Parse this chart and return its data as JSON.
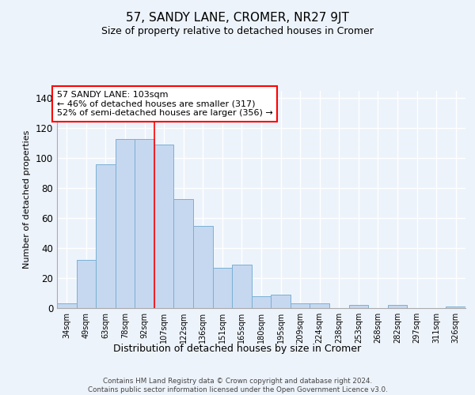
{
  "title": "57, SANDY LANE, CROMER, NR27 9JT",
  "subtitle": "Size of property relative to detached houses in Cromer",
  "xlabel": "Distribution of detached houses by size in Cromer",
  "ylabel": "Number of detached properties",
  "categories": [
    "34sqm",
    "49sqm",
    "63sqm",
    "78sqm",
    "92sqm",
    "107sqm",
    "122sqm",
    "136sqm",
    "151sqm",
    "165sqm",
    "180sqm",
    "195sqm",
    "209sqm",
    "224sqm",
    "238sqm",
    "253sqm",
    "268sqm",
    "282sqm",
    "297sqm",
    "311sqm",
    "326sqm"
  ],
  "values": [
    3,
    32,
    96,
    113,
    113,
    109,
    73,
    55,
    27,
    29,
    8,
    9,
    3,
    3,
    0,
    2,
    0,
    2,
    0,
    0,
    1
  ],
  "bar_color": "#c5d8f0",
  "bar_edge_color": "#7ab0d4",
  "red_line_index": 5,
  "annotation_title": "57 SANDY LANE: 103sqm",
  "annotation_line1": "← 46% of detached houses are smaller (317)",
  "annotation_line2": "52% of semi-detached houses are larger (356) →",
  "ylim": [
    0,
    145
  ],
  "yticks": [
    0,
    20,
    40,
    60,
    80,
    100,
    120,
    140
  ],
  "footer_line1": "Contains HM Land Registry data © Crown copyright and database right 2024.",
  "footer_line2": "Contains public sector information licensed under the Open Government Licence v3.0.",
  "bg_color": "#edf3fb",
  "plot_bg_color": "#edf3fb"
}
